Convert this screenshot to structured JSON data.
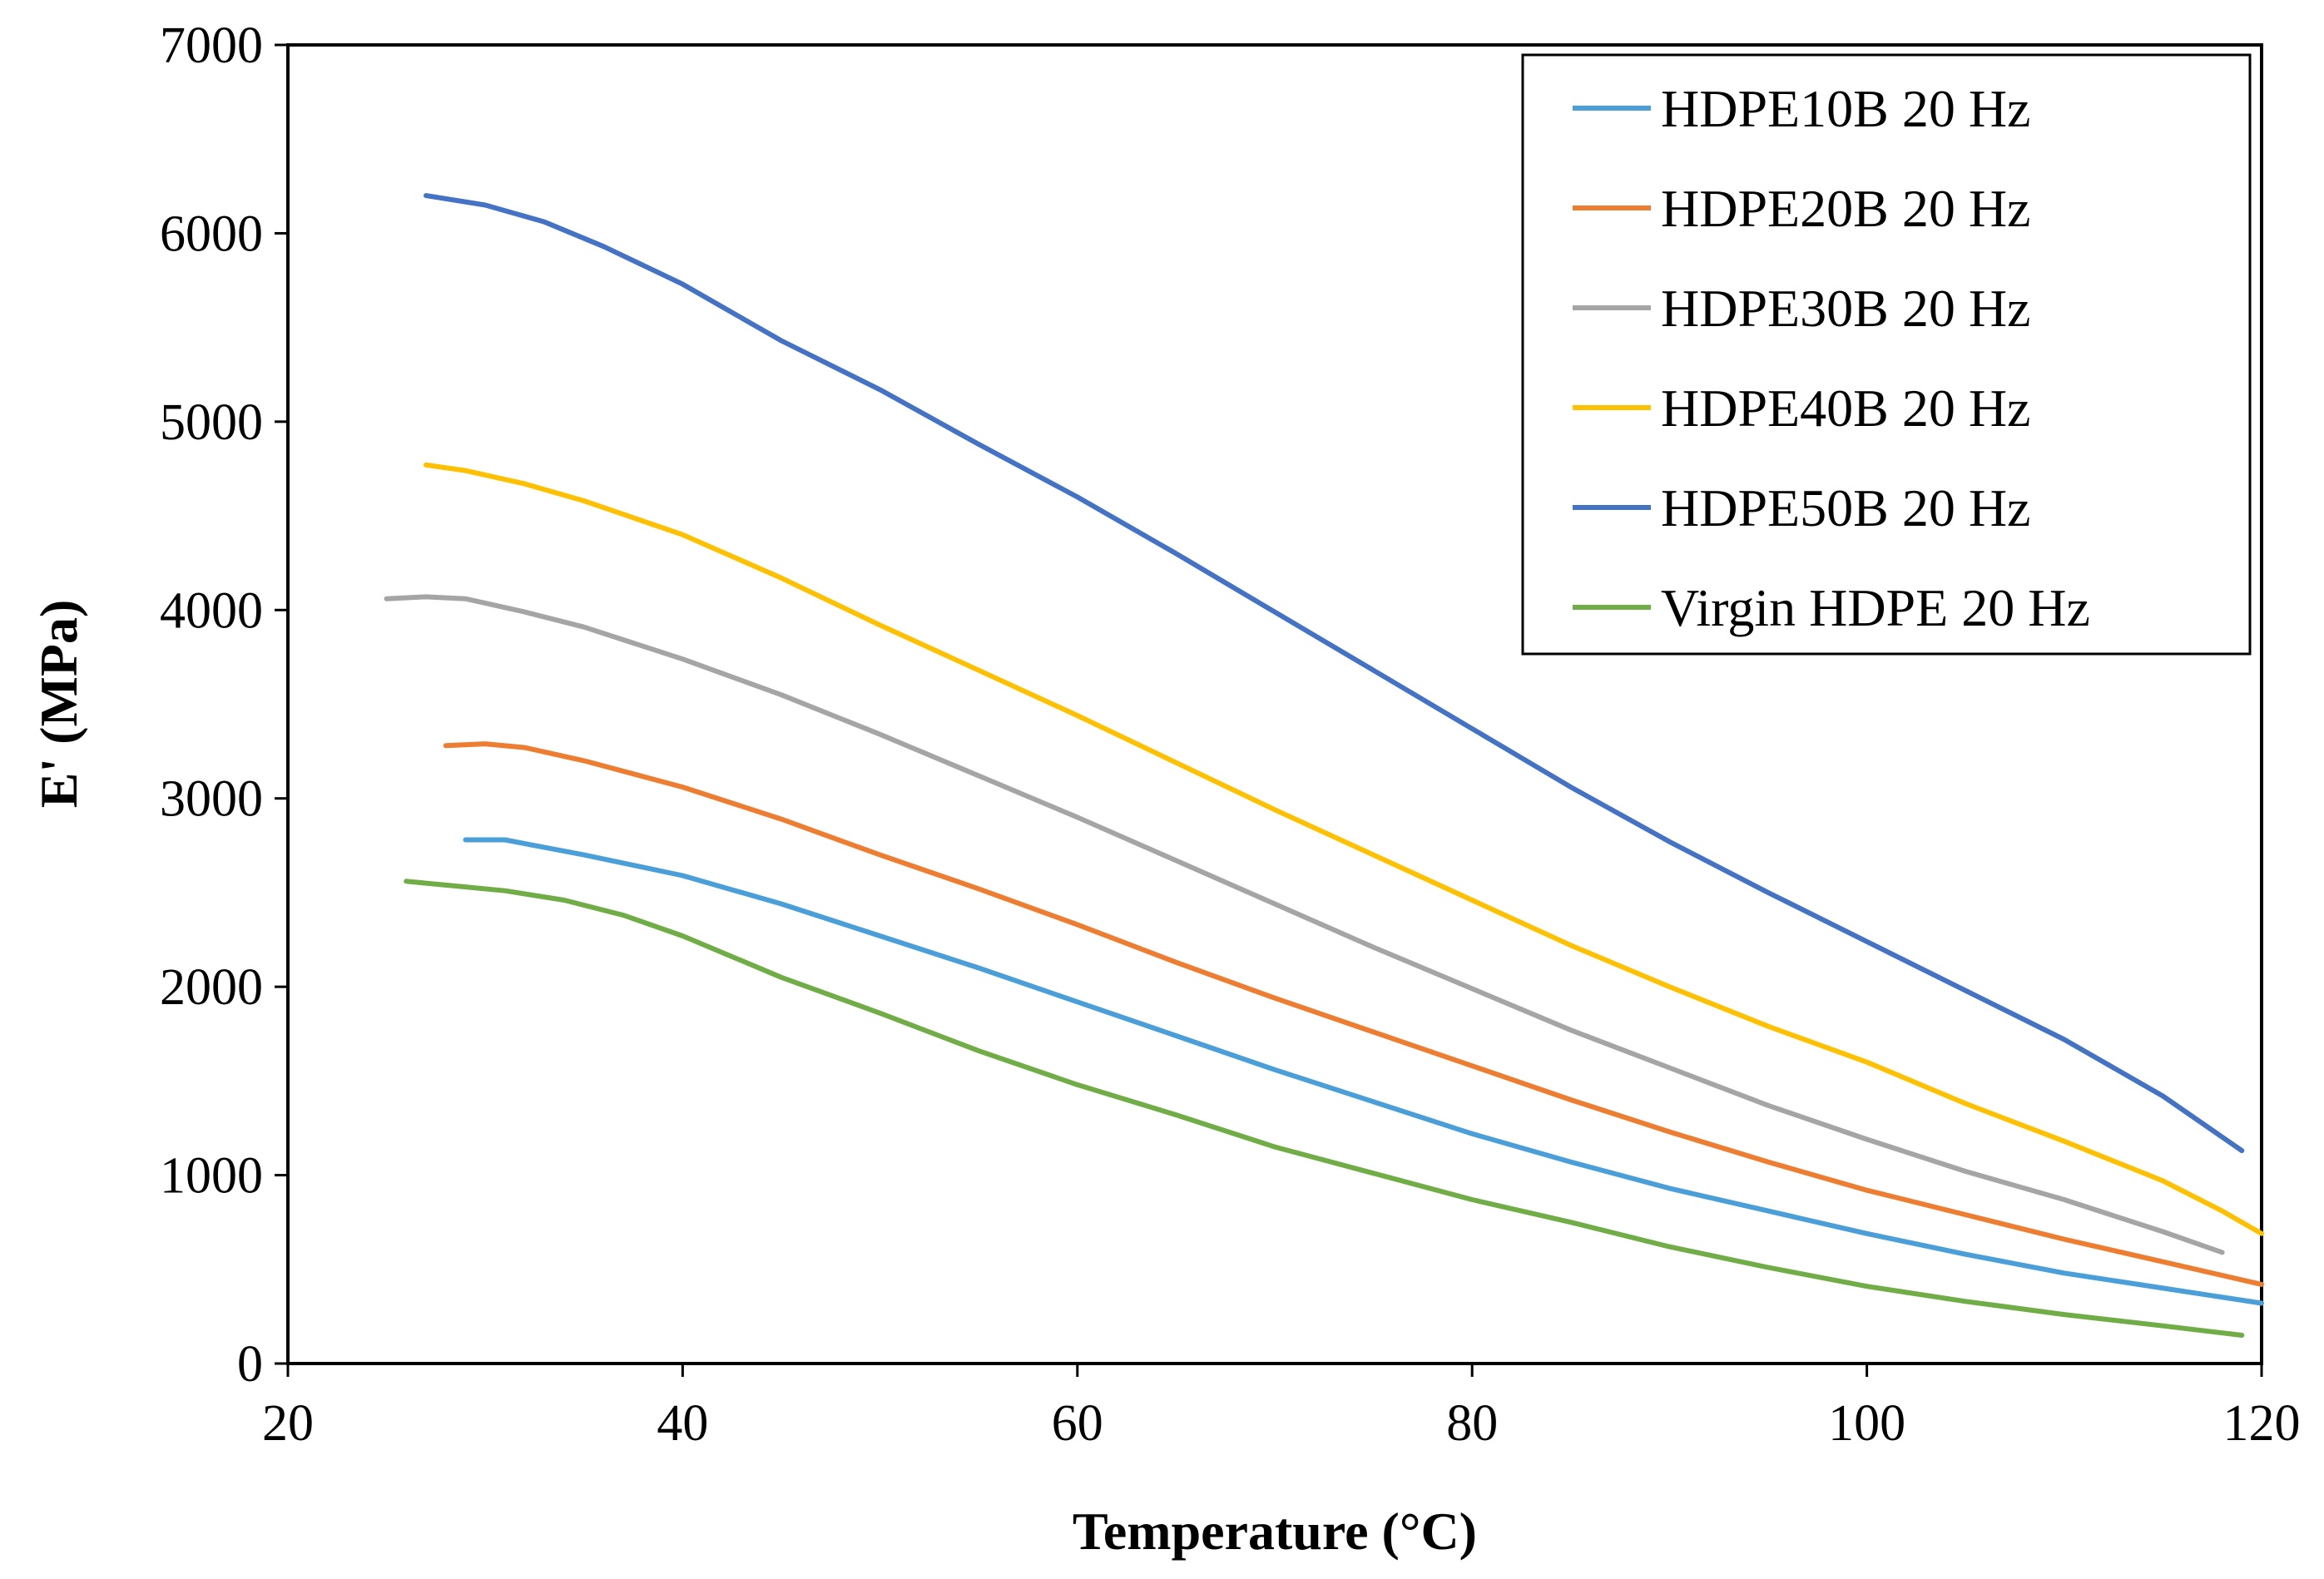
{
  "chart_data": {
    "type": "line",
    "title": "",
    "xlabel": "Temperature (°C)",
    "ylabel": "E' (MPa)",
    "xlim": [
      20,
      120
    ],
    "ylim": [
      0,
      7000
    ],
    "x_ticks": [
      20,
      40,
      60,
      80,
      100,
      120
    ],
    "y_ticks": [
      0,
      1000,
      2000,
      3000,
      4000,
      5000,
      6000,
      7000
    ],
    "x_tick_labels": [
      "20",
      "40",
      "60",
      "80",
      "100",
      "120"
    ],
    "y_tick_labels": [
      "0",
      "1000",
      "2000",
      "3000",
      "4000",
      "5000",
      "6000",
      "7000"
    ],
    "grid": false,
    "legend_position": "top-right",
    "series": [
      {
        "name": "HDPE10B 20 Hz",
        "color": "#4A9FD8",
        "points": [
          [
            29,
            2780
          ],
          [
            31,
            2780
          ],
          [
            33,
            2740
          ],
          [
            35,
            2700
          ],
          [
            40,
            2590
          ],
          [
            45,
            2440
          ],
          [
            50,
            2270
          ],
          [
            55,
            2100
          ],
          [
            60,
            1920
          ],
          [
            65,
            1740
          ],
          [
            70,
            1560
          ],
          [
            75,
            1390
          ],
          [
            80,
            1220
          ],
          [
            85,
            1070
          ],
          [
            90,
            930
          ],
          [
            95,
            810
          ],
          [
            100,
            690
          ],
          [
            105,
            580
          ],
          [
            110,
            480
          ],
          [
            115,
            400
          ],
          [
            120,
            320
          ]
        ]
      },
      {
        "name": "HDPE20B 20 Hz",
        "color": "#ED7D31",
        "points": [
          [
            28,
            3280
          ],
          [
            30,
            3290
          ],
          [
            32,
            3270
          ],
          [
            35,
            3200
          ],
          [
            40,
            3060
          ],
          [
            45,
            2890
          ],
          [
            50,
            2700
          ],
          [
            55,
            2520
          ],
          [
            60,
            2330
          ],
          [
            65,
            2130
          ],
          [
            70,
            1940
          ],
          [
            75,
            1760
          ],
          [
            80,
            1580
          ],
          [
            85,
            1400
          ],
          [
            90,
            1230
          ],
          [
            95,
            1070
          ],
          [
            100,
            920
          ],
          [
            105,
            790
          ],
          [
            110,
            660
          ],
          [
            115,
            540
          ],
          [
            120,
            420
          ]
        ]
      },
      {
        "name": "HDPE30B 20 Hz",
        "color": "#A5A5A5",
        "points": [
          [
            25,
            4060
          ],
          [
            27,
            4070
          ],
          [
            29,
            4060
          ],
          [
            32,
            3990
          ],
          [
            35,
            3910
          ],
          [
            40,
            3740
          ],
          [
            45,
            3550
          ],
          [
            50,
            3340
          ],
          [
            55,
            3120
          ],
          [
            60,
            2900
          ],
          [
            65,
            2670
          ],
          [
            70,
            2440
          ],
          [
            75,
            2210
          ],
          [
            80,
            1990
          ],
          [
            85,
            1770
          ],
          [
            90,
            1570
          ],
          [
            95,
            1370
          ],
          [
            100,
            1190
          ],
          [
            105,
            1020
          ],
          [
            110,
            870
          ],
          [
            115,
            700
          ],
          [
            118,
            590
          ]
        ]
      },
      {
        "name": "HDPE40B 20 Hz",
        "color": "#FFC000",
        "points": [
          [
            27,
            4770
          ],
          [
            29,
            4740
          ],
          [
            32,
            4670
          ],
          [
            35,
            4580
          ],
          [
            40,
            4400
          ],
          [
            45,
            4170
          ],
          [
            50,
            3920
          ],
          [
            55,
            3680
          ],
          [
            60,
            3440
          ],
          [
            65,
            3190
          ],
          [
            70,
            2940
          ],
          [
            75,
            2700
          ],
          [
            80,
            2460
          ],
          [
            85,
            2220
          ],
          [
            90,
            2000
          ],
          [
            95,
            1790
          ],
          [
            100,
            1600
          ],
          [
            105,
            1380
          ],
          [
            110,
            1180
          ],
          [
            115,
            970
          ],
          [
            118,
            810
          ],
          [
            120,
            690
          ]
        ]
      },
      {
        "name": "HDPE50B 20 Hz",
        "color": "#4472C4",
        "points": [
          [
            27,
            6200
          ],
          [
            30,
            6150
          ],
          [
            33,
            6060
          ],
          [
            36,
            5930
          ],
          [
            40,
            5730
          ],
          [
            45,
            5430
          ],
          [
            50,
            5170
          ],
          [
            55,
            4880
          ],
          [
            60,
            4600
          ],
          [
            65,
            4300
          ],
          [
            70,
            3990
          ],
          [
            75,
            3680
          ],
          [
            80,
            3370
          ],
          [
            85,
            3060
          ],
          [
            90,
            2770
          ],
          [
            95,
            2500
          ],
          [
            100,
            2240
          ],
          [
            105,
            1980
          ],
          [
            110,
            1720
          ],
          [
            115,
            1420
          ],
          [
            119,
            1130
          ]
        ]
      },
      {
        "name": "Virgin HDPE 20 Hz",
        "color": "#70AD47",
        "points": [
          [
            26,
            2560
          ],
          [
            28,
            2540
          ],
          [
            31,
            2510
          ],
          [
            34,
            2460
          ],
          [
            37,
            2380
          ],
          [
            40,
            2270
          ],
          [
            45,
            2050
          ],
          [
            50,
            1860
          ],
          [
            55,
            1660
          ],
          [
            60,
            1480
          ],
          [
            65,
            1320
          ],
          [
            70,
            1150
          ],
          [
            75,
            1010
          ],
          [
            80,
            870
          ],
          [
            85,
            750
          ],
          [
            90,
            620
          ],
          [
            95,
            510
          ],
          [
            100,
            410
          ],
          [
            105,
            330
          ],
          [
            110,
            260
          ],
          [
            115,
            200
          ],
          [
            119,
            150
          ]
        ]
      }
    ]
  }
}
